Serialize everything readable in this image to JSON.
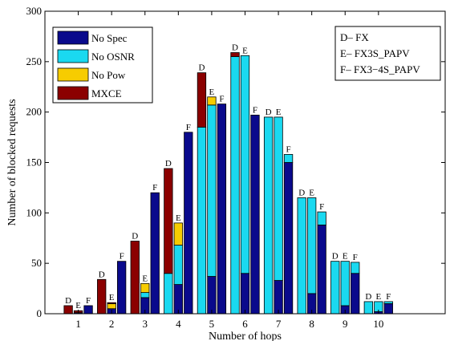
{
  "chart_data": {
    "type": "bar",
    "subtype": "stacked-grouped",
    "xlabel": "Number of hops",
    "ylabel": "Number of  blocked requests",
    "ylim": [
      0,
      300
    ],
    "yticks": [
      0,
      50,
      100,
      150,
      200,
      250,
      300
    ],
    "xlim": [
      0,
      12
    ],
    "x_ticks": [
      1,
      2,
      3,
      4,
      5,
      6,
      7,
      8,
      9,
      10
    ],
    "group_offsets": [
      -0.3,
      0,
      0.3
    ],
    "group_codes": [
      "D",
      "E",
      "F"
    ],
    "colors": {
      "No Spec": "#0a0a8c",
      "No OSNR": "#1ad9f0",
      "No Pow": "#f7cc00",
      "MXCE": "#8b0000"
    },
    "stack_order": [
      "No Spec",
      "No OSNR",
      "No Pow",
      "MXCE"
    ],
    "legend": {
      "position": "top-left",
      "entries": [
        "No Spec",
        "No OSNR",
        "No Pow",
        "MXCE"
      ]
    },
    "group_legend": {
      "position": "top-right",
      "lines": [
        "D– FX",
        "E– FX3S_PAPV",
        "F– FX3−4S_PAPV"
      ]
    },
    "bars": [
      {
        "hop": 1,
        "code": "D",
        "No Spec": 0,
        "No OSNR": 0,
        "No Pow": 0,
        "MXCE": 8
      },
      {
        "hop": 1,
        "code": "E",
        "No Spec": 1,
        "No OSNR": 0,
        "No Pow": 0,
        "MXCE": 2
      },
      {
        "hop": 1,
        "code": "F",
        "No Spec": 8,
        "No OSNR": 0,
        "No Pow": 0,
        "MXCE": 0
      },
      {
        "hop": 2,
        "code": "D",
        "No Spec": 0,
        "No OSNR": 0,
        "No Pow": 0,
        "MXCE": 34
      },
      {
        "hop": 2,
        "code": "E",
        "No Spec": 5,
        "No OSNR": 0,
        "No Pow": 5,
        "MXCE": 1
      },
      {
        "hop": 2,
        "code": "F",
        "No Spec": 52,
        "No OSNR": 0,
        "No Pow": 0,
        "MXCE": 0
      },
      {
        "hop": 3,
        "code": "D",
        "No Spec": 0,
        "No OSNR": 0,
        "No Pow": 0,
        "MXCE": 72
      },
      {
        "hop": 3,
        "code": "E",
        "No Spec": 16,
        "No OSNR": 5,
        "No Pow": 9,
        "MXCE": 0
      },
      {
        "hop": 3,
        "code": "F",
        "No Spec": 120,
        "No OSNR": 0,
        "No Pow": 0,
        "MXCE": 0
      },
      {
        "hop": 4,
        "code": "D",
        "No Spec": 0,
        "No OSNR": 40,
        "No Pow": 0,
        "MXCE": 104
      },
      {
        "hop": 4,
        "code": "E",
        "No Spec": 29,
        "No OSNR": 39,
        "No Pow": 22,
        "MXCE": 0
      },
      {
        "hop": 4,
        "code": "F",
        "No Spec": 180,
        "No OSNR": 0,
        "No Pow": 0,
        "MXCE": 0
      },
      {
        "hop": 5,
        "code": "D",
        "No Spec": 0,
        "No OSNR": 185,
        "No Pow": 0,
        "MXCE": 54
      },
      {
        "hop": 5,
        "code": "E",
        "No Spec": 37,
        "No OSNR": 170,
        "No Pow": 8,
        "MXCE": 0
      },
      {
        "hop": 5,
        "code": "F",
        "No Spec": 208,
        "No OSNR": 0,
        "No Pow": 0,
        "MXCE": 0
      },
      {
        "hop": 6,
        "code": "D",
        "No Spec": 0,
        "No OSNR": 255,
        "No Pow": 0,
        "MXCE": 4
      },
      {
        "hop": 6,
        "code": "E",
        "No Spec": 40,
        "No OSNR": 216,
        "No Pow": 0,
        "MXCE": 0
      },
      {
        "hop": 6,
        "code": "F",
        "No Spec": 197,
        "No OSNR": 0,
        "No Pow": 0,
        "MXCE": 0
      },
      {
        "hop": 7,
        "code": "D",
        "No Spec": 0,
        "No OSNR": 195,
        "No Pow": 0,
        "MXCE": 0
      },
      {
        "hop": 7,
        "code": "E",
        "No Spec": 33,
        "No OSNR": 162,
        "No Pow": 0,
        "MXCE": 0
      },
      {
        "hop": 7,
        "code": "F",
        "No Spec": 150,
        "No OSNR": 8,
        "No Pow": 0,
        "MXCE": 0
      },
      {
        "hop": 8,
        "code": "D",
        "No Spec": 0,
        "No OSNR": 115,
        "No Pow": 0,
        "MXCE": 0
      },
      {
        "hop": 8,
        "code": "E",
        "No Spec": 20,
        "No OSNR": 95,
        "No Pow": 0,
        "MXCE": 0
      },
      {
        "hop": 8,
        "code": "F",
        "No Spec": 88,
        "No OSNR": 13,
        "No Pow": 0,
        "MXCE": 0
      },
      {
        "hop": 9,
        "code": "D",
        "No Spec": 0,
        "No OSNR": 52,
        "No Pow": 0,
        "MXCE": 0
      },
      {
        "hop": 9,
        "code": "E",
        "No Spec": 8,
        "No OSNR": 44,
        "No Pow": 0,
        "MXCE": 0
      },
      {
        "hop": 9,
        "code": "F",
        "No Spec": 40,
        "No OSNR": 11,
        "No Pow": 0,
        "MXCE": 0
      },
      {
        "hop": 10,
        "code": "D",
        "No Spec": 0,
        "No OSNR": 12,
        "No Pow": 0,
        "MXCE": 0
      },
      {
        "hop": 10,
        "code": "E",
        "No Spec": 2,
        "No OSNR": 10,
        "No Pow": 0,
        "MXCE": 0
      },
      {
        "hop": 10,
        "code": "F",
        "No Spec": 10,
        "No OSNR": 2,
        "No Pow": 0,
        "MXCE": 0
      }
    ]
  }
}
